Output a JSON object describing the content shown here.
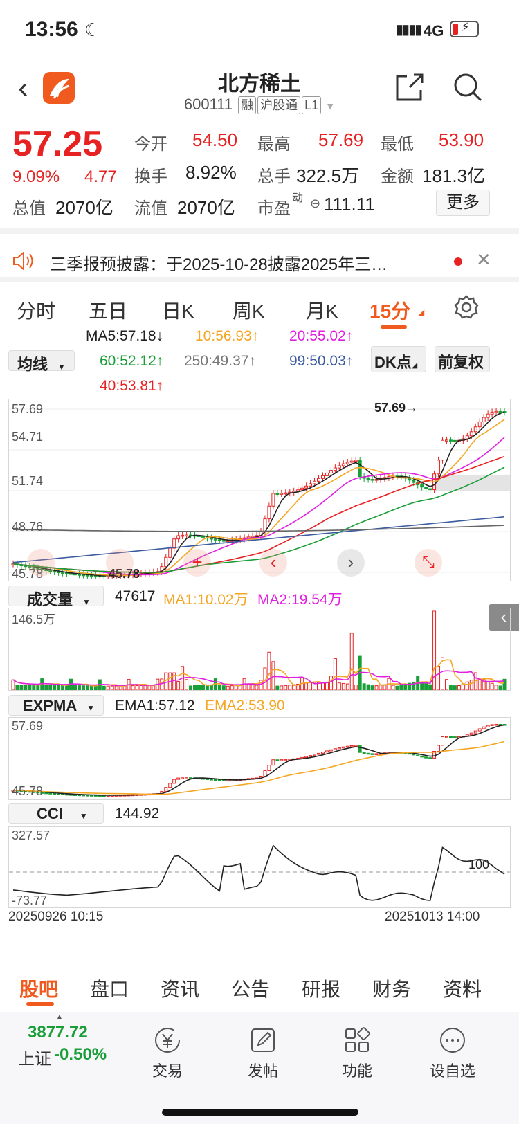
{
  "status": {
    "time": "13:56",
    "network": "4G"
  },
  "header": {
    "title": "北方稀土",
    "code": "600111",
    "tags": [
      "融",
      "沪股通",
      "L1"
    ]
  },
  "quote": {
    "price": "57.25",
    "change_pct": "9.09%",
    "change": "4.77",
    "open_label": "今开",
    "open": "54.50",
    "high_label": "最高",
    "high": "57.69",
    "low_label": "最低",
    "low": "53.90",
    "turnover_label": "换手",
    "turnover": "8.92%",
    "volume_label": "总手",
    "volume": "322.5万",
    "amount_label": "金额",
    "amount": "181.3亿",
    "mktcap_label": "总值",
    "mktcap": "2070亿",
    "float_label": "流值",
    "float": "2070亿",
    "pe_label": "市盈",
    "pe_sup": "动",
    "pe": "111.11",
    "more_label": "更多"
  },
  "notice": {
    "text": "三季报预披露：于2025-10-28披露2025年三…"
  },
  "period_tabs": [
    "分时",
    "五日",
    "日K",
    "周K",
    "月K",
    "15分"
  ],
  "active_tab": "15分",
  "ma": {
    "selector": "均线",
    "ma5": "MA5:57.18↓",
    "ma10": "10:56.93↑",
    "ma20": "20:55.02↑",
    "ma60": "60:52.12↑",
    "ma250": "250:49.37↑",
    "ma99": "99:50.03↑",
    "ma40": "40:53.81↑",
    "dk_label": "DK点",
    "adjust_label": "前复权"
  },
  "colors": {
    "ma5": "#222222",
    "ma10": "#f5a623",
    "ma20": "#e020e0",
    "ma60": "#1a9e38",
    "ma250": "#666666",
    "ma99": "#3a5ba0",
    "ma40": "#e62222",
    "up": "#e62222",
    "down": "#1a9e38"
  },
  "kline": {
    "y_labels": [
      "57.69",
      "54.71",
      "51.74",
      "48.76",
      "45.78"
    ],
    "high_mark": "57.69→",
    "low_mark": "←45.78"
  },
  "volume": {
    "selector": "成交量",
    "current": "47617",
    "ma1": "MA1:10.02万",
    "ma2": "MA2:19.54万",
    "max_label": "146.5万"
  },
  "expma": {
    "selector": "EXPMA",
    "ema1": "EMA1:57.12",
    "ema2": "EMA2:53.90",
    "top": "57.69",
    "bottom": "45.78"
  },
  "cci": {
    "selector": "CCI",
    "value": "144.92",
    "top": "327.57",
    "bottom": "-73.77",
    "ref": "100"
  },
  "time_axis": {
    "start": "20250926 10:15",
    "end": "20251013 14:00"
  },
  "bottom_tabs": [
    "股吧",
    "盘口",
    "资讯",
    "公告",
    "研报",
    "财务",
    "资料"
  ],
  "active_bottom_tab": "股吧",
  "toolbar": {
    "index_value": "3877.72",
    "index_name": "上证",
    "index_change": "-0.50%",
    "items": [
      "交易",
      "发帖",
      "功能",
      "设自选"
    ]
  }
}
